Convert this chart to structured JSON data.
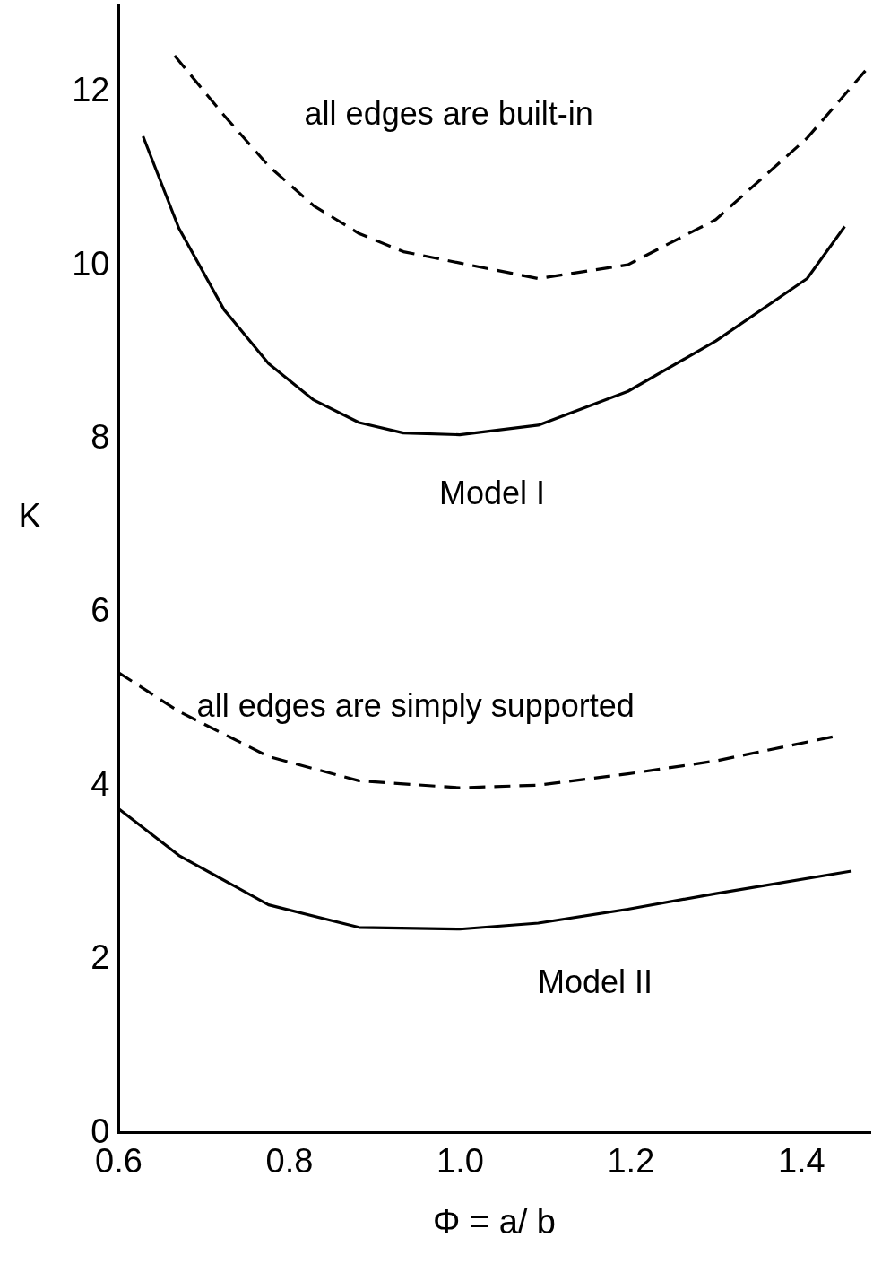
{
  "chart_data": {
    "type": "line",
    "xlabel": "Φ = a/ b",
    "ylabel": "K",
    "xlim": [
      0.6,
      1.48
    ],
    "ylim": [
      0,
      13
    ],
    "xticks": [
      0.6,
      0.8,
      {
        "value": 1,
        "label": "1.0"
      },
      1.2,
      1.4
    ],
    "yticks": [
      0,
      2,
      4,
      6,
      8,
      10,
      12
    ],
    "grid": false,
    "legend": false,
    "marker": "none",
    "series": [
      {
        "name": "all edges are built-in",
        "color": "#000000",
        "line_style": "dashed",
        "x": [
          0.666,
          0.724,
          0.776,
          0.829,
          0.882,
          0.934,
          1.0,
          1.092,
          1.197,
          1.3,
          1.407,
          1.48
        ],
        "values": [
          12.41,
          11.72,
          11.14,
          10.68,
          10.36,
          10.15,
          10.02,
          9.84,
          10.0,
          10.52,
          11.46,
          12.29
        ]
      },
      {
        "name": "Model I",
        "color": "#000000",
        "line_style": "solid",
        "x": [
          0.629,
          0.671,
          0.724,
          0.776,
          0.829,
          0.882,
          0.934,
          1.0,
          1.092,
          1.197,
          1.3,
          1.407,
          1.451
        ],
        "values": [
          11.48,
          10.42,
          9.48,
          8.86,
          8.44,
          8.18,
          8.06,
          8.04,
          8.15,
          8.54,
          9.12,
          9.84,
          10.44
        ]
      },
      {
        "name": "all edges are simply supported",
        "color": "#000000",
        "line_style": "dashed",
        "x": [
          0.6,
          0.671,
          0.776,
          0.882,
          1.0,
          1.092,
          1.197,
          1.3,
          1.443
        ],
        "values": [
          5.3,
          4.85,
          4.33,
          4.05,
          3.97,
          4.0,
          4.13,
          4.28,
          4.57
        ]
      },
      {
        "name": "Model II",
        "color": "#000000",
        "line_style": "solid",
        "x": [
          0.6,
          0.671,
          0.776,
          0.882,
          1.0,
          1.092,
          1.197,
          1.3,
          1.459
        ],
        "values": [
          3.73,
          3.19,
          2.62,
          2.36,
          2.34,
          2.41,
          2.57,
          2.75,
          3.01
        ]
      }
    ]
  }
}
